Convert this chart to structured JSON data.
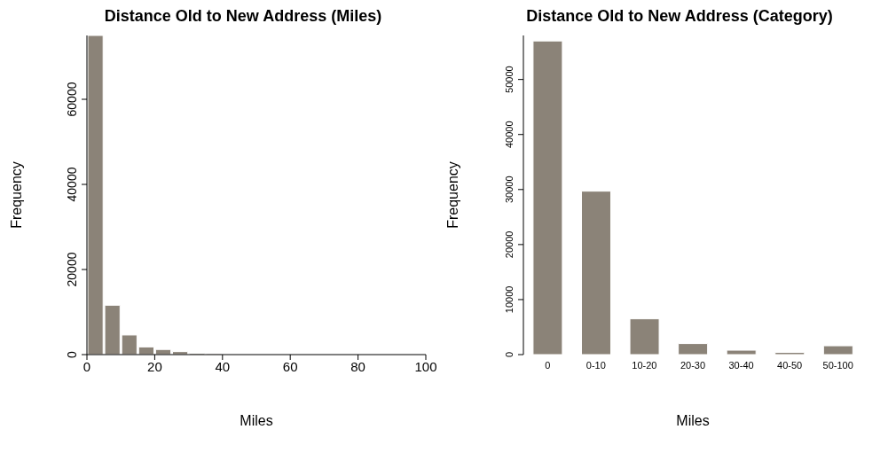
{
  "chart_data": [
    {
      "type": "histogram",
      "title": "Distance Old to New Address (Miles)",
      "xlabel": "Miles",
      "ylabel": "Frequency",
      "bins": [
        0,
        5,
        10,
        15,
        20,
        25,
        30,
        35,
        40
      ],
      "values": [
        75000,
        11600,
        4600,
        1800,
        1200,
        700,
        300,
        200
      ],
      "color": "#8b8378",
      "xlim": [
        0,
        100
      ],
      "xticks": [
        0,
        20,
        40,
        60,
        80,
        100
      ],
      "ylim": [
        0,
        75000
      ],
      "yticks": [
        0,
        20000,
        40000,
        60000
      ]
    },
    {
      "type": "bar",
      "title": "Distance Old to New Address (Category)",
      "xlabel": "Miles",
      "ylabel": "Frequency",
      "categories": [
        "0",
        "0-10",
        "10-20",
        "20-30",
        "30-40",
        "40-50",
        "50-100"
      ],
      "values": [
        57000,
        29700,
        6500,
        2000,
        800,
        400,
        1600
      ],
      "color": "#8b8378",
      "ylim": [
        0,
        58000
      ],
      "yticks": [
        0,
        10000,
        20000,
        30000,
        40000,
        50000
      ]
    }
  ]
}
